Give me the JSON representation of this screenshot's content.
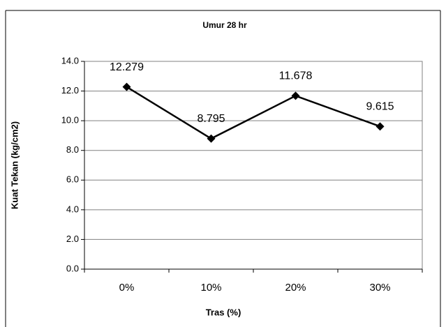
{
  "chart_data": {
    "type": "line",
    "title": "Umur 28 hr",
    "x_label": "Tras (%)",
    "y_label": "Kuat Tekan (kg/cm2)",
    "categories": [
      "0%",
      "10%",
      "20%",
      "30%"
    ],
    "series": [
      {
        "color": "#000000",
        "values": [
          12.279,
          8.795,
          11.678,
          9.615
        ]
      }
    ],
    "ylim": [
      0,
      14
    ],
    "yticks": [
      {
        "value": 0,
        "label": "0.0"
      },
      {
        "value": 2,
        "label": "2.0"
      },
      {
        "value": 4,
        "label": "4.0"
      },
      {
        "value": 6,
        "label": "6.0"
      },
      {
        "value": 8,
        "label": "8.0"
      },
      {
        "value": 10,
        "label": "10.0"
      },
      {
        "value": 12,
        "label": "12.0"
      },
      {
        "value": 14,
        "label": "14.0"
      }
    ],
    "grid": true
  }
}
